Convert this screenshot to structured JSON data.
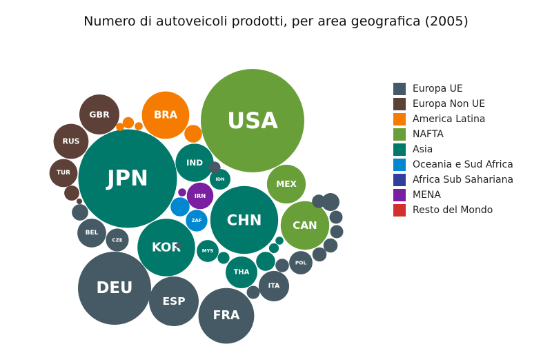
{
  "chart_data": {
    "type": "bubble",
    "title": "Numero di autoveicoli prodotti, per area geografica (2005)",
    "groups": [
      {
        "name": "Europa UE",
        "color": "#455a64"
      },
      {
        "name": "Europa Non UE",
        "color": "#5d4037"
      },
      {
        "name": "America Latina",
        "color": "#f57c00"
      },
      {
        "name": "NAFTA",
        "color": "#689f38"
      },
      {
        "name": "Asia",
        "color": "#00796b"
      },
      {
        "name": "Oceania e Sud Africa",
        "color": "#0288d1"
      },
      {
        "name": "Africa Sub Sahariana",
        "color": "#303f9f"
      },
      {
        "name": "MENA",
        "color": "#7b1fa2"
      },
      {
        "name": "Resto del Mondo",
        "color": "#d32f2f"
      }
    ],
    "legend_position": "right",
    "bubbles": [
      {
        "label": "USA",
        "group": "NAFTA",
        "size": 100
      },
      {
        "label": "JPN",
        "group": "Asia",
        "size": 91
      },
      {
        "label": "DEU",
        "group": "Europa UE",
        "size": 50
      },
      {
        "label": "CHN",
        "group": "Asia",
        "size": 43
      },
      {
        "label": "FRA",
        "group": "Europa UE",
        "size": 29
      },
      {
        "label": "KOR",
        "group": "Asia",
        "size": 31
      },
      {
        "label": "CAN",
        "group": "NAFTA",
        "size": 22
      },
      {
        "label": "ESP",
        "group": "Europa UE",
        "size": 23
      },
      {
        "label": "BRA",
        "group": "America Latina",
        "size": 21
      },
      {
        "label": "GBR",
        "group": "Europa Non UE",
        "size": 15
      },
      {
        "label": "MEX",
        "group": "NAFTA",
        "size": 14
      },
      {
        "label": "IND",
        "group": "Asia",
        "size": 13.5
      },
      {
        "label": "RUS",
        "group": "Europa Non UE",
        "size": 11.5
      },
      {
        "label": "ITA",
        "group": "Europa UE",
        "size": 8.7
      },
      {
        "label": "THA",
        "group": "Asia",
        "size": 9.4
      },
      {
        "label": "BEL",
        "group": "Europa UE",
        "size": 7.8
      },
      {
        "label": "TUR",
        "group": "Europa Non UE",
        "size": 7.4
      },
      {
        "label": "IRN",
        "group": "MENA",
        "size": 6.6
      },
      {
        "label": "CZE",
        "group": "Europa UE",
        "size": 4.9
      },
      {
        "label": "POL",
        "group": "Europa UE",
        "size": 5.1
      },
      {
        "label": "MYS",
        "group": "Asia",
        "size": 4.5
      },
      {
        "label": "ZAF",
        "group": "Oceania e Sud Africa",
        "size": 4.4
      },
      {
        "label": "IDN",
        "group": "Asia",
        "size": 4.0
      },
      {
        "label": "",
        "group": "America Latina",
        "size": 2.9
      },
      {
        "label": "",
        "group": "America Latina",
        "size": 1.2
      },
      {
        "label": "",
        "group": "America Latina",
        "size": 0.6
      },
      {
        "label": "",
        "group": "America Latina",
        "size": 0.6
      },
      {
        "label": "",
        "group": "Europa Non UE",
        "size": 2.1
      },
      {
        "label": "",
        "group": "Europa Non UE",
        "size": 0.3
      },
      {
        "label": "",
        "group": "Oceania e Sud Africa",
        "size": 3.4
      },
      {
        "label": "",
        "group": "MENA",
        "size": 0.6
      },
      {
        "label": "",
        "group": "Asia",
        "size": 3.4
      },
      {
        "label": "",
        "group": "Asia",
        "size": 1.3
      },
      {
        "label": "",
        "group": "Asia",
        "size": 0.9
      },
      {
        "label": "",
        "group": "Asia",
        "size": 0.6
      },
      {
        "label": "",
        "group": "Europa UE",
        "size": 2.5
      },
      {
        "label": "",
        "group": "Europa UE",
        "size": 3.0
      },
      {
        "label": "",
        "group": "Europa UE",
        "size": 1.6
      },
      {
        "label": "",
        "group": "Europa UE",
        "size": 1.6
      },
      {
        "label": "",
        "group": "Europa UE",
        "size": 1.9
      },
      {
        "label": "",
        "group": "Europa UE",
        "size": 1.9
      },
      {
        "label": "",
        "group": "Europa UE",
        "size": 1.7
      },
      {
        "label": "",
        "group": "Europa UE",
        "size": 1.6
      },
      {
        "label": "",
        "group": "Europa UE",
        "size": 1.7
      },
      {
        "label": "",
        "group": "Europa UE",
        "size": 1.3
      },
      {
        "label": "",
        "group": "Europa UE",
        "size": 0.3
      }
    ]
  }
}
